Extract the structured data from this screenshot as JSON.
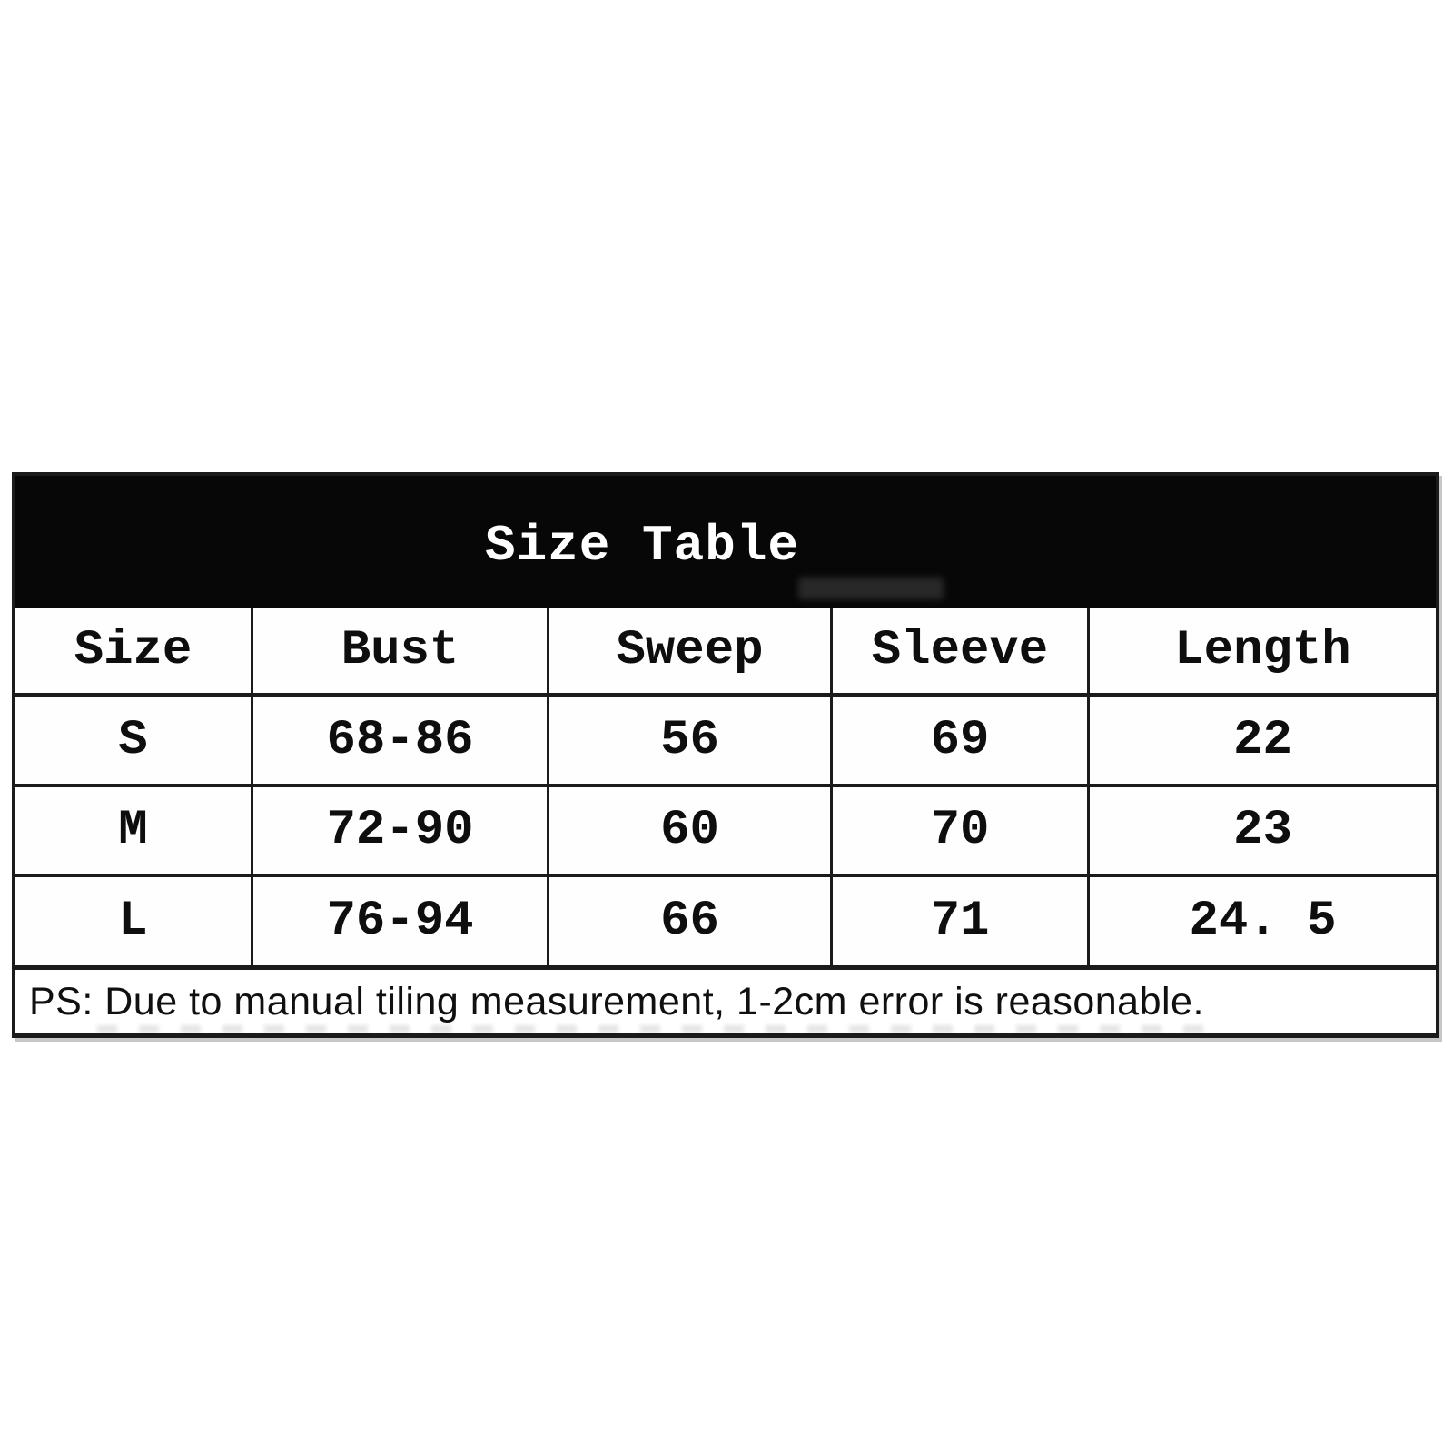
{
  "banner": {
    "title": "Size Table"
  },
  "table": {
    "columns": [
      "Size",
      "Bust",
      "Sweep",
      "Sleeve",
      "Length"
    ],
    "rows": [
      {
        "size": "S",
        "bust": "68-86",
        "sweep": "56",
        "sleeve": "69",
        "length": "22"
      },
      {
        "size": "M",
        "bust": "72-90",
        "sweep": "60",
        "sleeve": "70",
        "length": "23"
      },
      {
        "size": "L",
        "bust": "76-94",
        "sweep": "66",
        "sleeve": "71",
        "length": "24. 5"
      }
    ]
  },
  "note": {
    "text": "PS: Due to manual tiling measurement, 1-2cm error is reasonable."
  },
  "colors": {
    "banner_background": "#070707",
    "banner_text": "#ffffff",
    "grid_line": "#1b1b1b",
    "cell_text": "#0e0e0e",
    "page_background": "#ffffff"
  }
}
